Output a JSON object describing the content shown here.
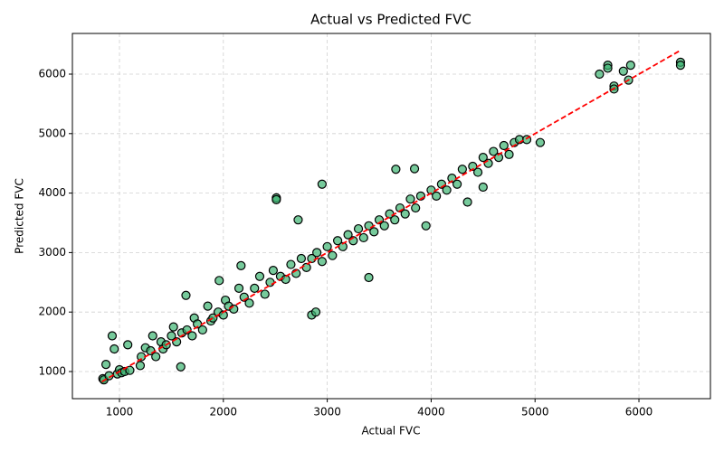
{
  "chart_data": {
    "type": "scatter",
    "title": "Actual vs Predicted FVC",
    "x_label": "Actual FVC",
    "y_label": "Predicted FVC",
    "x": [
      840,
      850,
      870,
      900,
      930,
      950,
      980,
      1000,
      1020,
      1050,
      1080,
      1100,
      1200,
      1210,
      1250,
      1300,
      1320,
      1350,
      1400,
      1420,
      1450,
      1500,
      1520,
      1550,
      1590,
      1600,
      1640,
      1650,
      1700,
      1720,
      1750,
      1800,
      1850,
      1880,
      1900,
      1950,
      1960,
      2000,
      2020,
      2050,
      2100,
      2150,
      2170,
      2200,
      2250,
      2300,
      2350,
      2400,
      2450,
      2480,
      2510,
      2510,
      2550,
      2600,
      2650,
      2700,
      2720,
      2750,
      2800,
      2850,
      2850,
      2890,
      2900,
      2950,
      2950,
      3000,
      3050,
      3100,
      3150,
      3200,
      3250,
      3300,
      3350,
      3400,
      3400,
      3450,
      3500,
      3550,
      3600,
      3650,
      3660,
      3700,
      3750,
      3800,
      3840,
      3850,
      3900,
      3950,
      4000,
      4050,
      4100,
      4150,
      4200,
      4250,
      4300,
      4350,
      4400,
      4450,
      4500,
      4500,
      4550,
      4600,
      4650,
      4700,
      4750,
      4800,
      4850,
      4920,
      5050,
      5620,
      5700,
      5700,
      5760,
      5760,
      5850,
      5900,
      5920,
      6400,
      6400
    ],
    "values": [
      880,
      860,
      1120,
      930,
      1600,
      1380,
      960,
      1030,
      980,
      1000,
      1450,
      1020,
      1100,
      1250,
      1400,
      1350,
      1600,
      1250,
      1500,
      1380,
      1450,
      1600,
      1750,
      1500,
      1080,
      1650,
      2280,
      1700,
      1600,
      1900,
      1800,
      1700,
      2100,
      1850,
      1900,
      2000,
      2530,
      1950,
      2200,
      2100,
      2050,
      2400,
      2780,
      2250,
      2150,
      2400,
      2600,
      2300,
      2500,
      2700,
      3920,
      3890,
      2600,
      2550,
      2800,
      2650,
      3550,
      2900,
      2750,
      1950,
      2900,
      2000,
      3000,
      4150,
      2850,
      3100,
      2950,
      3200,
      3100,
      3300,
      3200,
      3400,
      3250,
      2580,
      3450,
      3350,
      3550,
      3450,
      3650,
      3550,
      4400,
      3750,
      3650,
      3900,
      4410,
      3750,
      3950,
      3450,
      4050,
      3950,
      4150,
      4050,
      4250,
      4150,
      4400,
      3850,
      4450,
      4350,
      4100,
      4600,
      4500,
      4700,
      4600,
      4800,
      4650,
      4850,
      4900,
      4900,
      4850,
      6000,
      6150,
      6100,
      5800,
      5750,
      6050,
      5900,
      6150,
      6200,
      6150
    ],
    "color": "#3cb371",
    "reference_line": {
      "x": [
        830,
        6400
      ],
      "values": [
        830,
        6400
      ],
      "color": "#ff0000"
    },
    "xlim": [
      547,
      6688
    ],
    "ylim": [
      544,
      6684
    ],
    "xticks": [
      1000,
      2000,
      3000,
      4000,
      5000,
      6000
    ],
    "yticks": [
      1000,
      2000,
      3000,
      4000,
      5000,
      6000
    ],
    "grid": true
  }
}
